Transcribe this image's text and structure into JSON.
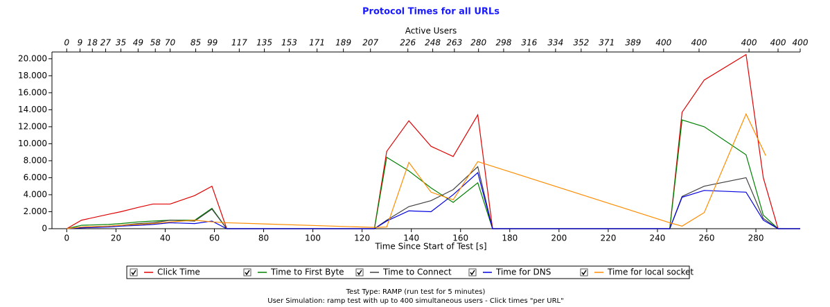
{
  "chart_data": {
    "type": "line",
    "title": "Protocol Times for all URLs",
    "x2_label": "Active Users",
    "x_label": "Time Since Start of Test [s]",
    "xlim": [
      -6,
      298
    ],
    "xticks": [
      0,
      20,
      40,
      60,
      80,
      100,
      120,
      140,
      160,
      180,
      200,
      220,
      240,
      260,
      280
    ],
    "x2ticks": [
      {
        "value": 0,
        "label": "0"
      },
      {
        "value": 5.4,
        "label": "9"
      },
      {
        "value": 10.4,
        "label": "18"
      },
      {
        "value": 15.8,
        "label": "27"
      },
      {
        "value": 22,
        "label": "35"
      },
      {
        "value": 29,
        "label": "49"
      },
      {
        "value": 36,
        "label": "58"
      },
      {
        "value": 42,
        "label": "70"
      },
      {
        "value": 52.4,
        "label": "85"
      },
      {
        "value": 59.2,
        "label": "99"
      },
      {
        "value": 70.1,
        "label": "117"
      },
      {
        "value": 80.3,
        "label": "135"
      },
      {
        "value": 90.4,
        "label": "153"
      },
      {
        "value": 101.7,
        "label": "171"
      },
      {
        "value": 112.4,
        "label": "189"
      },
      {
        "value": 123.4,
        "label": "207"
      },
      {
        "value": 138.6,
        "label": "226"
      },
      {
        "value": 148.7,
        "label": "248"
      },
      {
        "value": 157.5,
        "label": "263"
      },
      {
        "value": 167.3,
        "label": "280"
      },
      {
        "value": 177.5,
        "label": "298"
      },
      {
        "value": 187.9,
        "label": "316"
      },
      {
        "value": 198.6,
        "label": "334"
      },
      {
        "value": 209,
        "label": "352"
      },
      {
        "value": 219.4,
        "label": "371"
      },
      {
        "value": 230.1,
        "label": "389"
      },
      {
        "value": 242.5,
        "label": "400"
      },
      {
        "value": 256.9,
        "label": "400"
      },
      {
        "value": 277.2,
        "label": "400"
      },
      {
        "value": 289,
        "label": "400"
      },
      {
        "value": 298,
        "label": "400"
      }
    ],
    "ylim": [
      0,
      20800
    ],
    "yticks": [
      0,
      {
        "value": 2000,
        "label": "2.000"
      },
      {
        "value": 4000,
        "label": "4.000"
      },
      {
        "value": 6000,
        "label": "6.000"
      },
      {
        "value": 8000,
        "label": "8.000"
      },
      {
        "value": 10000,
        "label": "10.000"
      },
      {
        "value": 12000,
        "label": "12.000"
      },
      {
        "value": 14000,
        "label": "14.000"
      },
      {
        "value": 16000,
        "label": "16.000"
      },
      {
        "value": 18000,
        "label": "18.000"
      },
      {
        "value": 20000,
        "label": "20.000"
      }
    ],
    "series": [
      {
        "name": "Click Time",
        "color": "#e00000",
        "x": [
          0,
          6,
          17,
          22,
          29,
          35,
          42,
          52,
          59,
          65,
          125,
          130,
          139,
          148,
          157,
          167,
          173,
          245,
          250,
          259,
          276,
          283,
          289,
          298
        ],
        "values": [
          0,
          1000,
          1700,
          2000,
          2500,
          2900,
          2900,
          3900,
          5000,
          0,
          0,
          9100,
          12700,
          9700,
          8500,
          13400,
          0,
          0,
          13700,
          17500,
          20500,
          6000,
          0,
          0
        ]
      },
      {
        "name": "Time to First Byte",
        "color": "#008000",
        "x": [
          0,
          6,
          17,
          22,
          29,
          35,
          42,
          52,
          59,
          65,
          125,
          130,
          139,
          148,
          157,
          167,
          173,
          245,
          250,
          259,
          276,
          283,
          289,
          298
        ],
        "values": [
          0,
          400,
          500,
          600,
          800,
          900,
          1000,
          1000,
          2400,
          0,
          0,
          8400,
          6800,
          4800,
          3100,
          5400,
          0,
          0,
          12800,
          12000,
          8700,
          1600,
          0,
          0
        ]
      },
      {
        "name": "Time to Connect",
        "color": "#404040",
        "x": [
          0,
          6,
          17,
          22,
          29,
          35,
          42,
          52,
          59,
          65,
          125,
          130,
          139,
          148,
          157,
          167,
          173,
          245,
          250,
          259,
          276,
          283,
          289,
          298
        ],
        "values": [
          0,
          200,
          300,
          400,
          600,
          700,
          1000,
          900,
          2300,
          0,
          0,
          1000,
          2600,
          3300,
          4600,
          7300,
          0,
          0,
          3800,
          5000,
          6000,
          1200,
          0,
          0
        ]
      },
      {
        "name": "Time for DNS",
        "color": "#0000e0",
        "x": [
          0,
          6,
          17,
          22,
          29,
          35,
          42,
          52,
          59,
          65,
          125,
          130,
          139,
          148,
          157,
          167,
          173,
          245,
          250,
          259,
          276,
          283,
          289,
          298
        ],
        "values": [
          0,
          100,
          200,
          300,
          400,
          500,
          700,
          600,
          900,
          0,
          0,
          900,
          2100,
          2000,
          4000,
          6600,
          0,
          0,
          3700,
          4500,
          4300,
          1000,
          0,
          0
        ]
      },
      {
        "name": "Time for local socket",
        "color": "#ff8c00",
        "x": [
          0,
          6,
          17,
          22,
          29,
          35,
          42,
          52,
          59,
          65,
          125,
          130,
          139,
          148,
          157,
          167,
          245,
          250,
          259,
          276,
          284
        ],
        "values": [
          0,
          200,
          300,
          400,
          500,
          600,
          800,
          1000,
          800,
          700,
          150,
          200,
          7800,
          4300,
          3400,
          7900,
          700,
          300,
          1900,
          13500,
          8600
        ]
      }
    ],
    "footer": [
      "Test Type: RAMP (run test for 5 minutes)",
      "User Simulation: ramp test with up to 400 simultaneous users - Click times \"per URL\""
    ]
  }
}
